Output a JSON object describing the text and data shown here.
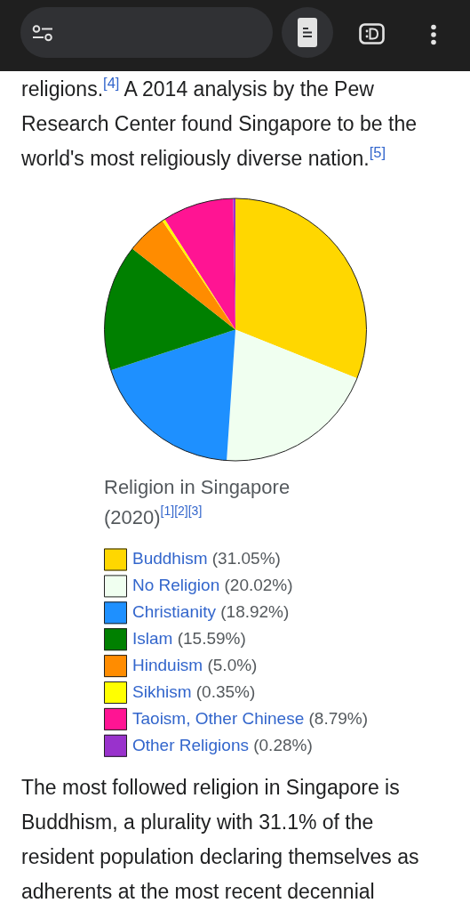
{
  "chart_data": {
    "type": "pie",
    "title": "Religion in Singapore (2020)$^{[1][2][3]}$",
    "categories": [
      "Buddhism",
      "No Religion",
      "Christianity",
      "Islam",
      "Hinduism",
      "Sikhism",
      "Taoism, Other Chinese",
      "Other Religions"
    ],
    "values": [
      31.05,
      20.02,
      18.92,
      15.59,
      5.0,
      0.35,
      8.79,
      0.28
    ],
    "colors": [
      "#ffd700",
      "#f0fff0",
      "#1e90ff",
      "#008000",
      "#ff8c00",
      "#ffff00",
      "#ff1493",
      "#9932cc"
    ],
    "value_labels": [
      "(31.05%)",
      "(20.02%)",
      "(18.92%)",
      "(15.59%)",
      "(5.0%)",
      "(0.35%)",
      "(8.79%)",
      "(0.28%)"
    ],
    "legend": "bottom",
    "annotations": [
      "religions.$^{[4]}$ A 2014 analysis by the Pew Research Center found Singapore to be the world's most religiously diverse nation.$^{[5]}$",
      "The most followed religion in Singapore is Buddhism, a plurality with 31.1% of the resident population declaring themselves as adherents at the most recent decennial"
    ]
  }
}
